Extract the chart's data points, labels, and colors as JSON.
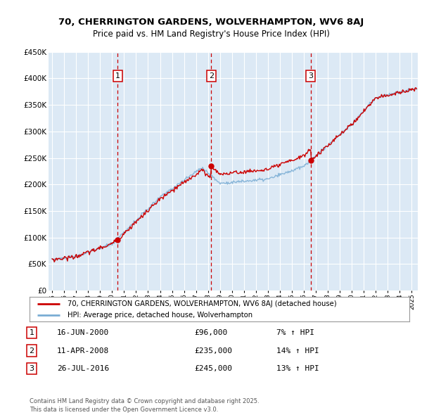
{
  "title1": "70, CHERRINGTON GARDENS, WOLVERHAMPTON, WV6 8AJ",
  "title2": "Price paid vs. HM Land Registry's House Price Index (HPI)",
  "legend_line1": "70, CHERRINGTON GARDENS, WOLVERHAMPTON, WV6 8AJ (detached house)",
  "legend_line2": "HPI: Average price, detached house, Wolverhampton",
  "footer": "Contains HM Land Registry data © Crown copyright and database right 2025.\nThis data is licensed under the Open Government Licence v3.0.",
  "sales": [
    {
      "num": 1,
      "date": "16-JUN-2000",
      "price": 96000,
      "year": 2000.46,
      "hpi_pct": "7% ↑ HPI"
    },
    {
      "num": 2,
      "date": "11-APR-2008",
      "price": 235000,
      "year": 2008.28,
      "hpi_pct": "14% ↑ HPI"
    },
    {
      "num": 3,
      "date": "26-JUL-2016",
      "price": 245000,
      "year": 2016.57,
      "hpi_pct": "13% ↑ HPI"
    }
  ],
  "ylim": [
    0,
    450000
  ],
  "xlim_start": 1994.7,
  "xlim_end": 2025.5,
  "background_color": "#dce9f5",
  "red_color": "#cc0000",
  "blue_color": "#7aadd4",
  "grid_color": "#ffffff"
}
